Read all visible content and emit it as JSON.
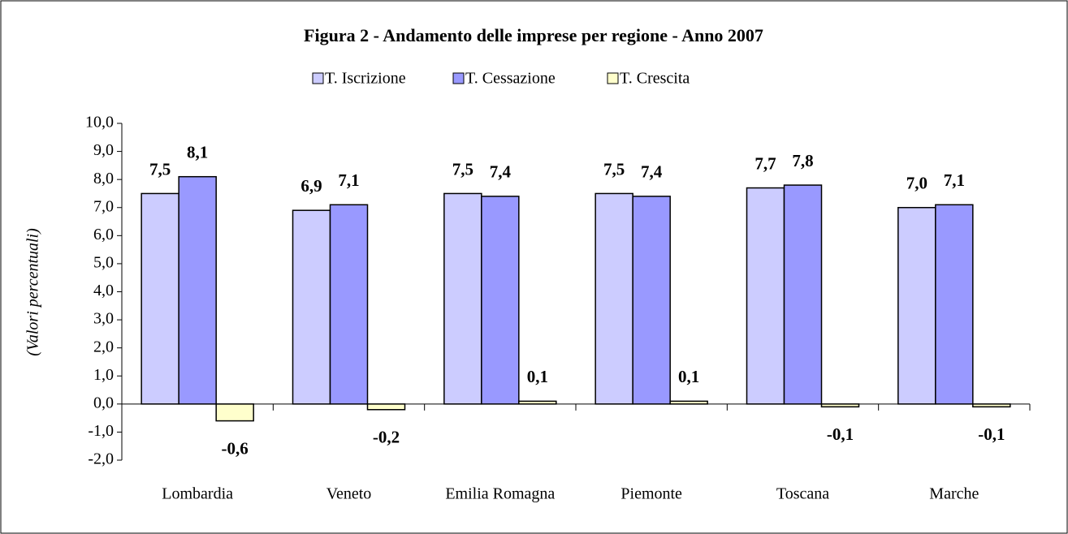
{
  "chart_data": {
    "type": "bar",
    "title": "Figura 2 - Andamento delle imprese per regione - Anno 2007",
    "y_label": "(Valori percentuali)",
    "categories": [
      "Lombardia",
      "Veneto",
      "Emilia Romagna",
      "Piemonte",
      "Toscana",
      "Marche"
    ],
    "series": [
      {
        "name": "T. Iscrizione",
        "color": "#ccccff",
        "values": [
          7.5,
          6.9,
          7.5,
          7.5,
          7.7,
          7.0
        ],
        "value_labels": [
          "7,5",
          "6,9",
          "7,5",
          "7,5",
          "7,7",
          "7,0"
        ]
      },
      {
        "name": "T. Cessazione",
        "color": "#9999ff",
        "values": [
          8.1,
          7.1,
          7.4,
          7.4,
          7.8,
          7.1
        ],
        "value_labels": [
          "8,1",
          "7,1",
          "7,4",
          "7,4",
          "7,8",
          "7,1"
        ]
      },
      {
        "name": "T. Crescita",
        "color": "#ffffcc",
        "values": [
          -0.6,
          -0.2,
          0.1,
          0.1,
          -0.1,
          -0.1
        ],
        "value_labels": [
          "-0,6",
          "-0,2",
          "0,1",
          "0,1",
          "-0,1",
          "-0,1"
        ]
      }
    ],
    "ylim": [
      -2,
      10
    ],
    "yticks": [
      {
        "value": -2,
        "label": "-2,0"
      },
      {
        "value": -1,
        "label": "-1,0"
      },
      {
        "value": 0,
        "label": "0,0"
      },
      {
        "value": 1,
        "label": "1,0"
      },
      {
        "value": 2,
        "label": "2,0"
      },
      {
        "value": 3,
        "label": "3,0"
      },
      {
        "value": 4,
        "label": "4,0"
      },
      {
        "value": 5,
        "label": "5,0"
      },
      {
        "value": 6,
        "label": "6,0"
      },
      {
        "value": 7,
        "label": "7,0"
      },
      {
        "value": 8,
        "label": "8,0"
      },
      {
        "value": 9,
        "label": "9,0"
      },
      {
        "value": 10,
        "label": "10,0"
      }
    ],
    "grid": false,
    "legend": "top"
  }
}
